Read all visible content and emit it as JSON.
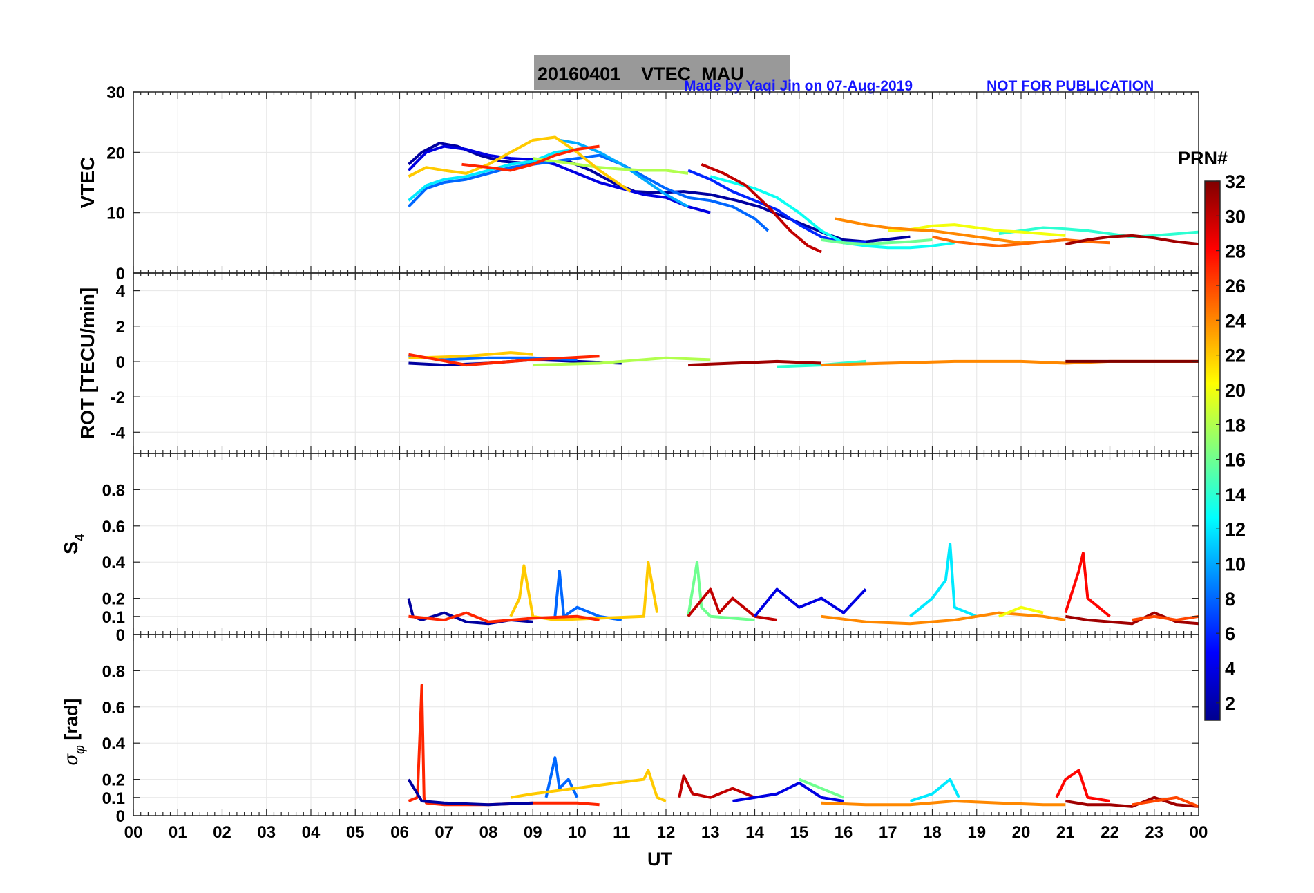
{
  "figure": {
    "title_box": "20160401    VTEC  MAU",
    "credit": "Made by Yaqi Jin on 07-Aug-2019",
    "notice": "NOT FOR PUBLICATION",
    "x_axis_label": "UT",
    "x_ticks": [
      "00",
      "01",
      "02",
      "03",
      "04",
      "05",
      "06",
      "07",
      "08",
      "09",
      "10",
      "11",
      "12",
      "13",
      "14",
      "15",
      "16",
      "17",
      "18",
      "19",
      "20",
      "21",
      "22",
      "23",
      "00"
    ]
  },
  "colorbar": {
    "title": "PRN#",
    "ticks": [
      "2",
      "4",
      "6",
      "8",
      "10",
      "12",
      "14",
      "16",
      "18",
      "20",
      "22",
      "24",
      "26",
      "28",
      "30",
      "32"
    ],
    "range": [
      1,
      32
    ],
    "colormap": "jet"
  },
  "chart_data": [
    {
      "type": "line",
      "panel": "vtec",
      "ylabel": "VTEC",
      "ylim": [
        0,
        30
      ],
      "yticks": [
        "0",
        "10",
        "20",
        "30"
      ],
      "xlim": [
        0,
        24
      ],
      "grid": true,
      "series": [
        {
          "prn": 2,
          "x": [
            6.2,
            6.5,
            6.9,
            7.3,
            7.8,
            8.3,
            8.8,
            9.3,
            9.8,
            10.3,
            10.8,
            11.3,
            11.8,
            12.4,
            13.0,
            13.6,
            14.1,
            14.6,
            15.1,
            15.6,
            16.0,
            16.5,
            17.0,
            17.5
          ],
          "y": [
            18,
            20,
            21.5,
            21,
            19.5,
            18.5,
            18.2,
            18.5,
            18.5,
            17,
            15,
            13.5,
            13.3,
            13.5,
            13,
            12,
            11,
            9.5,
            8,
            6.5,
            5.5,
            5.2,
            5.6,
            6
          ]
        },
        {
          "prn": 4,
          "x": [
            6.2,
            6.6,
            7.0,
            7.5,
            8.0,
            8.5,
            9.0,
            9.5,
            10.0,
            10.5,
            11.0,
            11.5,
            12.0,
            12.5,
            13.0
          ],
          "y": [
            17,
            20,
            21,
            20.5,
            19.5,
            19,
            18.8,
            18,
            16.5,
            15,
            14,
            13,
            12.5,
            11,
            10
          ]
        },
        {
          "prn": 6,
          "x": [
            12.5,
            13.0,
            13.5,
            14.0,
            14.5,
            15.0,
            15.5,
            16.0,
            16.5
          ],
          "y": [
            17,
            15.5,
            13.5,
            12,
            10.5,
            8,
            6,
            5,
            5.2
          ]
        },
        {
          "prn": 8,
          "x": [
            6.2,
            6.6,
            7.0,
            7.5,
            8.0,
            8.5,
            9.0,
            9.5,
            10.0,
            10.5,
            11.0,
            11.5,
            12.0,
            12.5,
            13.0,
            13.5,
            14.0,
            14.3
          ],
          "y": [
            11,
            14,
            15,
            15.5,
            16.5,
            17.5,
            18,
            18.5,
            19,
            19.5,
            18,
            16,
            14,
            12.5,
            12,
            11,
            9,
            7
          ]
        },
        {
          "prn": 10,
          "x": [
            9.6,
            10.0,
            10.5,
            11.0,
            11.5,
            12.0,
            12.5
          ],
          "y": [
            22,
            21.5,
            20,
            18,
            15.5,
            13,
            11
          ]
        },
        {
          "prn": 12,
          "x": [
            6.2,
            6.6,
            7.0,
            7.5,
            8.0,
            8.5,
            9.0,
            9.5,
            10.0
          ],
          "y": [
            12,
            14.5,
            15.5,
            16,
            17,
            18,
            18.5,
            20,
            20.5
          ]
        },
        {
          "prn": 13,
          "x": [
            13.0,
            13.5,
            14.0,
            14.5,
            15.0,
            15.5,
            16.0,
            16.5,
            17.0,
            17.5,
            18.0,
            18.5
          ],
          "y": [
            16,
            15,
            14,
            12.5,
            10,
            7,
            5,
            4.5,
            4.2,
            4.2,
            4.5,
            5
          ]
        },
        {
          "prn": 14,
          "x": [
            19.5,
            20.0,
            20.5,
            21.0,
            21.5,
            22.0,
            22.5,
            23.0,
            23.5,
            24.0
          ],
          "y": [
            6.5,
            7,
            7.5,
            7.3,
            7,
            6.5,
            6,
            6.2,
            6.5,
            6.8
          ]
        },
        {
          "prn": 16,
          "x": [
            15.5,
            16.0,
            16.5,
            17.0,
            17.5,
            18.0
          ],
          "y": [
            5.5,
            5,
            4.8,
            5,
            5.2,
            5.5
          ]
        },
        {
          "prn": 18,
          "x": [
            9.0,
            9.5,
            10.0,
            10.5,
            11.0,
            11.5,
            12.0,
            12.5
          ],
          "y": [
            19,
            18.5,
            18,
            17.5,
            17.2,
            17,
            17,
            16.5
          ]
        },
        {
          "prn": 20,
          "x": [
            17.0,
            17.5,
            18.0,
            18.5,
            19.0,
            19.5,
            20.0,
            20.5,
            21.0
          ],
          "y": [
            7,
            7.2,
            7.8,
            8,
            7.5,
            7,
            6.8,
            6.5,
            6.2
          ]
        },
        {
          "prn": 22,
          "x": [
            6.2,
            6.6,
            7.0,
            7.5,
            8.0,
            8.5,
            9.0,
            9.5,
            10.0,
            10.5,
            11.0,
            11.2
          ],
          "y": [
            16,
            17.5,
            17,
            16.5,
            18,
            20,
            22,
            22.5,
            20,
            17,
            14.5,
            13.5
          ]
        },
        {
          "prn": 24,
          "x": [
            15.8,
            16.5,
            17.0,
            17.5,
            18.0,
            18.5,
            19.0,
            19.5,
            20.0,
            20.5,
            21.0
          ],
          "y": [
            9,
            8,
            7.5,
            7.2,
            7,
            6.5,
            6,
            5.5,
            5,
            5.2,
            5.5
          ]
        },
        {
          "prn": 25,
          "x": [
            18.0,
            18.5,
            19.0,
            19.5,
            20.0,
            20.5,
            21.0,
            21.5,
            22.0
          ],
          "y": [
            6,
            5.2,
            4.8,
            4.5,
            4.8,
            5.2,
            5.5,
            5.2,
            5
          ]
        },
        {
          "prn": 27,
          "x": [
            7.4,
            8.0,
            8.5,
            9.0,
            9.5,
            10.0,
            10.5
          ],
          "y": [
            18,
            17.5,
            17,
            18,
            19.5,
            20.5,
            21
          ]
        },
        {
          "prn": 30,
          "x": [
            12.8,
            13.3,
            13.8,
            14.3,
            14.8,
            15.2,
            15.5
          ],
          "y": [
            18,
            16.5,
            14.5,
            11,
            7,
            4.5,
            3.5
          ]
        },
        {
          "prn": 31,
          "x": [
            21.0,
            21.5,
            22.0,
            22.5,
            23.0,
            23.5,
            24.0
          ],
          "y": [
            4.8,
            5.5,
            6,
            6.2,
            5.8,
            5.2,
            4.8
          ]
        }
      ]
    },
    {
      "type": "line",
      "panel": "rot",
      "ylabel": "ROT [TECU/min]",
      "ylim": [
        -5.2,
        5
      ],
      "yticks": [
        "-4",
        "-2",
        "0",
        "2",
        "4"
      ],
      "xlim": [
        0,
        24
      ],
      "grid": true,
      "series": [
        {
          "prn": 2,
          "x": [
            6.2,
            7.0,
            8.0,
            9.0,
            10.0,
            11.0
          ],
          "y": [
            -0.1,
            -0.2,
            -0.1,
            0.1,
            0.0,
            -0.1
          ]
        },
        {
          "prn": 8,
          "x": [
            6.2,
            7.0,
            8.0,
            9.0,
            10.0
          ],
          "y": [
            0.3,
            0.1,
            0.2,
            0.2,
            0.1
          ]
        },
        {
          "prn": 18,
          "x": [
            9.0,
            10.5,
            12.0,
            13.0
          ],
          "y": [
            -0.2,
            -0.1,
            0.2,
            0.1
          ]
        },
        {
          "prn": 22,
          "x": [
            6.2,
            7.5,
            8.5,
            9.0
          ],
          "y": [
            0.2,
            0.3,
            0.5,
            0.4
          ]
        },
        {
          "prn": 27,
          "x": [
            6.2,
            7.5,
            9.0,
            10.5
          ],
          "y": [
            0.4,
            -0.2,
            0.1,
            0.3
          ]
        },
        {
          "prn": 14,
          "x": [
            14.5,
            15.5,
            16.5
          ],
          "y": [
            -0.3,
            -0.2,
            0.0
          ]
        },
        {
          "prn": 24,
          "x": [
            15.5,
            17.0,
            18.5,
            20.0,
            21.0,
            22.0,
            23.0,
            24.0
          ],
          "y": [
            -0.2,
            -0.1,
            0.0,
            0.0,
            -0.1,
            0.0,
            0.0,
            0.0
          ]
        },
        {
          "prn": 31,
          "x": [
            12.5,
            13.5,
            14.5,
            15.5
          ],
          "y": [
            -0.2,
            -0.1,
            0.0,
            -0.1
          ]
        },
        {
          "prn": 32,
          "x": [
            21.0,
            22.0,
            23.0,
            24.0
          ],
          "y": [
            0.0,
            0.0,
            0.0,
            0.0
          ]
        }
      ]
    },
    {
      "type": "line",
      "panel": "s4",
      "ylabel": "S4",
      "ylim": [
        0,
        1
      ],
      "yticks": [
        "0",
        "0.1",
        "0.2",
        "0.4",
        "0.6",
        "0.8"
      ],
      "xlim": [
        0,
        24
      ],
      "grid": true,
      "series": [
        {
          "prn": 2,
          "x": [
            6.2,
            6.3,
            6.5,
            7.0,
            7.5,
            8.0,
            8.5,
            9.0
          ],
          "y": [
            0.2,
            0.1,
            0.08,
            0.12,
            0.07,
            0.06,
            0.08,
            0.07
          ]
        },
        {
          "prn": 8,
          "x": [
            9.5,
            9.6,
            9.7,
            10.0,
            10.5,
            11.0
          ],
          "y": [
            0.1,
            0.35,
            0.1,
            0.15,
            0.1,
            0.08
          ]
        },
        {
          "prn": 22,
          "x": [
            8.5,
            8.7,
            8.8,
            9.0,
            9.5,
            11.5,
            11.6,
            11.8
          ],
          "y": [
            0.1,
            0.2,
            0.38,
            0.1,
            0.08,
            0.1,
            0.4,
            0.12
          ]
        },
        {
          "prn": 27,
          "x": [
            6.2,
            7.0,
            7.5,
            8.0,
            9.0,
            10.0,
            10.5
          ],
          "y": [
            0.1,
            0.08,
            0.12,
            0.07,
            0.09,
            0.1,
            0.08
          ]
        },
        {
          "prn": 16,
          "x": [
            12.5,
            12.7,
            12.8,
            13.0,
            14.0
          ],
          "y": [
            0.1,
            0.4,
            0.15,
            0.1,
            0.08
          ]
        },
        {
          "prn": 30,
          "x": [
            12.5,
            13.0,
            13.2,
            13.5,
            14.0,
            14.5
          ],
          "y": [
            0.1,
            0.25,
            0.12,
            0.2,
            0.1,
            0.08
          ]
        },
        {
          "prn": 4,
          "x": [
            14.0,
            14.5,
            15.0,
            15.5,
            16.0,
            16.5
          ],
          "y": [
            0.1,
            0.25,
            0.15,
            0.2,
            0.12,
            0.25
          ]
        },
        {
          "prn": 12,
          "x": [
            17.5,
            18.0,
            18.3,
            18.4,
            18.5,
            19.0
          ],
          "y": [
            0.1,
            0.2,
            0.3,
            0.5,
            0.15,
            0.1
          ]
        },
        {
          "prn": 24,
          "x": [
            15.5,
            16.5,
            17.5,
            18.5,
            19.5,
            20.5,
            21.0
          ],
          "y": [
            0.1,
            0.07,
            0.06,
            0.08,
            0.12,
            0.1,
            0.08
          ]
        },
        {
          "prn": 20,
          "x": [
            19.5,
            20.0,
            20.5
          ],
          "y": [
            0.1,
            0.15,
            0.12
          ]
        },
        {
          "prn": 28,
          "x": [
            21.0,
            21.3,
            21.4,
            21.5,
            22.0
          ],
          "y": [
            0.12,
            0.35,
            0.45,
            0.2,
            0.1
          ]
        },
        {
          "prn": 31,
          "x": [
            21.0,
            21.5,
            22.0,
            22.5,
            23.0,
            23.5,
            24.0
          ],
          "y": [
            0.1,
            0.08,
            0.07,
            0.06,
            0.12,
            0.07,
            0.06
          ]
        },
        {
          "prn": 26,
          "x": [
            22.5,
            23.0,
            23.5,
            24.0
          ],
          "y": [
            0.08,
            0.1,
            0.08,
            0.1
          ]
        }
      ]
    },
    {
      "type": "line",
      "panel": "sigma_phi",
      "ylabel": "σ_φ [rad]",
      "ylim": [
        0,
        1
      ],
      "yticks": [
        "0",
        "0.1",
        "0.2",
        "0.4",
        "0.6",
        "0.8"
      ],
      "xlim": [
        0,
        24
      ],
      "grid": true,
      "series": [
        {
          "prn": 27,
          "x": [
            6.2,
            6.4,
            6.5,
            6.55,
            6.6,
            7.0,
            8.0,
            9.0,
            10.0,
            10.5
          ],
          "y": [
            0.08,
            0.1,
            0.72,
            0.1,
            0.07,
            0.06,
            0.06,
            0.07,
            0.07,
            0.06
          ]
        },
        {
          "prn": 2,
          "x": [
            6.2,
            6.5,
            7.0,
            8.0,
            9.0
          ],
          "y": [
            0.2,
            0.08,
            0.07,
            0.06,
            0.07
          ]
        },
        {
          "prn": 8,
          "x": [
            9.3,
            9.5,
            9.6,
            9.8,
            10.0
          ],
          "y": [
            0.1,
            0.32,
            0.15,
            0.2,
            0.1
          ]
        },
        {
          "prn": 22,
          "x": [
            8.5,
            9.0,
            11.5,
            11.6,
            11.8,
            12.0
          ],
          "y": [
            0.1,
            0.12,
            0.2,
            0.25,
            0.1,
            0.08
          ]
        },
        {
          "prn": 30,
          "x": [
            12.3,
            12.4,
            12.6,
            13.0,
            13.5,
            14.0
          ],
          "y": [
            0.1,
            0.22,
            0.12,
            0.1,
            0.15,
            0.1
          ]
        },
        {
          "prn": 4,
          "x": [
            13.5,
            14.5,
            15.0,
            15.5,
            16.0
          ],
          "y": [
            0.08,
            0.12,
            0.18,
            0.1,
            0.08
          ]
        },
        {
          "prn": 16,
          "x": [
            15.0,
            15.5,
            16.0
          ],
          "y": [
            0.2,
            0.15,
            0.1
          ]
        },
        {
          "prn": 24,
          "x": [
            15.5,
            16.5,
            17.5,
            18.5,
            19.5,
            20.5,
            21.0
          ],
          "y": [
            0.07,
            0.06,
            0.06,
            0.08,
            0.07,
            0.06,
            0.06
          ]
        },
        {
          "prn": 12,
          "x": [
            17.5,
            18.0,
            18.4,
            18.6
          ],
          "y": [
            0.08,
            0.12,
            0.2,
            0.1
          ]
        },
        {
          "prn": 28,
          "x": [
            20.8,
            21.0,
            21.3,
            21.5,
            22.0
          ],
          "y": [
            0.1,
            0.2,
            0.25,
            0.1,
            0.08
          ]
        },
        {
          "prn": 31,
          "x": [
            21.0,
            21.5,
            22.0,
            22.5,
            23.0,
            23.5,
            24.0
          ],
          "y": [
            0.08,
            0.06,
            0.06,
            0.05,
            0.1,
            0.06,
            0.05
          ]
        },
        {
          "prn": 26,
          "x": [
            22.5,
            23.0,
            23.5,
            24.0
          ],
          "y": [
            0.06,
            0.08,
            0.1,
            0.05
          ]
        }
      ]
    }
  ]
}
